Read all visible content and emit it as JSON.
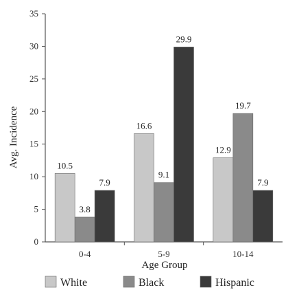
{
  "chart_data": {
    "type": "bar",
    "title": "",
    "xlabel": "Age Group",
    "ylabel": "Avg. Incidence",
    "categories": [
      "0-4",
      "5-9",
      "10-14"
    ],
    "series": [
      {
        "name": "White",
        "values": [
          10.5,
          16.6,
          12.9
        ],
        "labels": [
          "10.5",
          "16.6",
          "12.9"
        ],
        "color": "#c8c8c8"
      },
      {
        "name": "Black",
        "values": [
          3.8,
          9.1,
          19.7
        ],
        "labels": [
          "3.8",
          "9.1",
          "19.7"
        ],
        "color": "#8a8a8a"
      },
      {
        "name": "Hispanic",
        "values": [
          7.9,
          29.9,
          7.9
        ],
        "labels": [
          "7.9",
          "29.9",
          "7.9"
        ],
        "color": "#3a3a3a"
      }
    ],
    "ylim": [
      0,
      35
    ],
    "yticks": [
      "0",
      "5",
      "10",
      "15",
      "20",
      "25",
      "30",
      "35"
    ],
    "grid": false,
    "legend_position": "bottom"
  }
}
